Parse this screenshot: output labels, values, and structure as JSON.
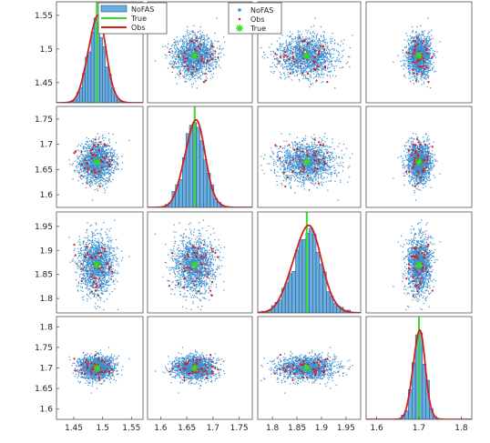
{
  "chart_data": {
    "type": "scatter-matrix",
    "variables": 4,
    "legend_diag": {
      "placement": "top-center",
      "entries": [
        "NoFAS",
        "True",
        "Obs"
      ]
    },
    "legend_scatter": {
      "placement": "top-left",
      "entries": [
        "NoFAS",
        "Obs",
        "True"
      ]
    },
    "series_styles": {
      "NoFAS": {
        "color": "#3e8fd0",
        "kind": "histogram / blue dots"
      },
      "True": {
        "color": "#33dd22",
        "kind": "vertical line / star marker"
      },
      "Obs": {
        "color": "#d22020",
        "kind": "density curve / red points"
      }
    },
    "true_values": [
      1.49,
      1.665,
      1.87,
      1.7
    ],
    "distribution_sd": [
      0.0155,
      0.0195,
      0.029,
      0.0145
    ],
    "obs_count": 50,
    "nofas_count": 1500,
    "y_ticks": [
      [
        "1.45",
        "1.5",
        "1.55"
      ],
      [
        "1.6",
        "1.65",
        "1.7",
        "1.75"
      ],
      [
        "1.8",
        "1.85",
        "1.9",
        "1.95"
      ],
      [
        "1.6",
        "1.65",
        "1.7",
        "1.75",
        "1.8"
      ]
    ],
    "x_ticks": [
      [
        "1.45",
        "1.5",
        "1.55"
      ],
      [
        "1.6",
        "1.65",
        "1.7",
        "1.75"
      ],
      [
        "1.8",
        "1.85",
        "1.9",
        "1.95"
      ],
      [
        "1.6",
        "1.7",
        "1.8"
      ]
    ],
    "axis_ranges": [
      [
        1.42,
        1.57
      ],
      [
        1.575,
        1.775
      ],
      [
        1.77,
        1.98
      ],
      [
        1.575,
        1.825
      ]
    ],
    "grid": false
  }
}
